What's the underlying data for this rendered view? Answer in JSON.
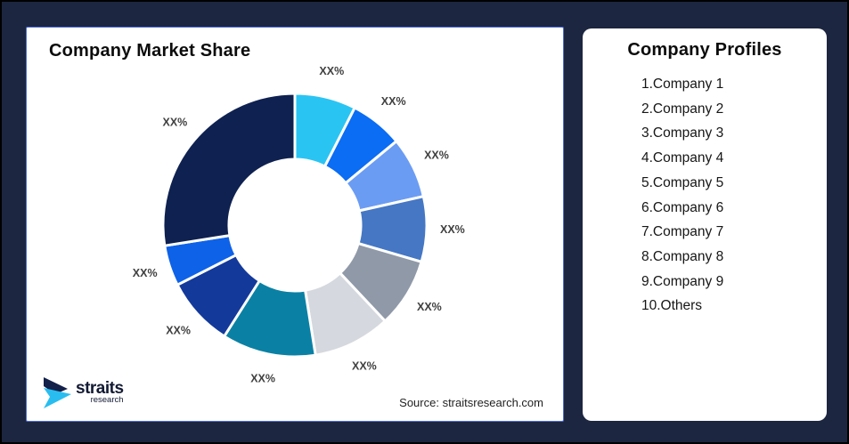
{
  "page": {
    "background_color": "#1C2640",
    "card_accent_border_color": "#4E6BCE"
  },
  "market_share_card": {
    "title": "Company Market Share",
    "source_note": "Source: straitsresearch.com",
    "logo": {
      "brand": "straits",
      "tagline": "research"
    }
  },
  "company_profiles_card": {
    "title": "Company Profiles",
    "items": [
      "1.Company 1",
      "2.Company 2",
      "3.Company 3",
      "4.Company 4",
      "5.Company 5",
      "6.Company 6",
      "7.Company 7",
      "8.Company 8",
      "9.Company 9",
      "10.Others"
    ]
  },
  "chart_data": {
    "type": "pie",
    "subtype": "donut",
    "title": "Company Market Share",
    "value_labels_masked_as": "XX%",
    "start_angle_deg": 0,
    "direction": "clockwise",
    "inner_radius_ratio": 0.5,
    "label_color": "#404040",
    "source": "Source: straitsresearch.com",
    "slices": [
      {
        "label": "XX%",
        "value": 7.5,
        "color": "#2AC4F3"
      },
      {
        "label": "XX%",
        "value": 6.5,
        "color": "#0B6CF4"
      },
      {
        "label": "XX%",
        "value": 7.5,
        "color": "#6B9CF3"
      },
      {
        "label": "XX%",
        "value": 8.0,
        "color": "#4577C4"
      },
      {
        "label": "XX%",
        "value": 8.5,
        "color": "#9099A8"
      },
      {
        "label": "XX%",
        "value": 9.5,
        "color": "#D5D8DE"
      },
      {
        "label": "XX%",
        "value": 11.5,
        "color": "#0A81A4"
      },
      {
        "label": "XX%",
        "value": 8.5,
        "color": "#13399A"
      },
      {
        "label": "XX%",
        "value": 5.0,
        "color": "#0E62E8"
      },
      {
        "label": "XX%",
        "value": 27.5,
        "color": "#0E2150"
      }
    ]
  }
}
